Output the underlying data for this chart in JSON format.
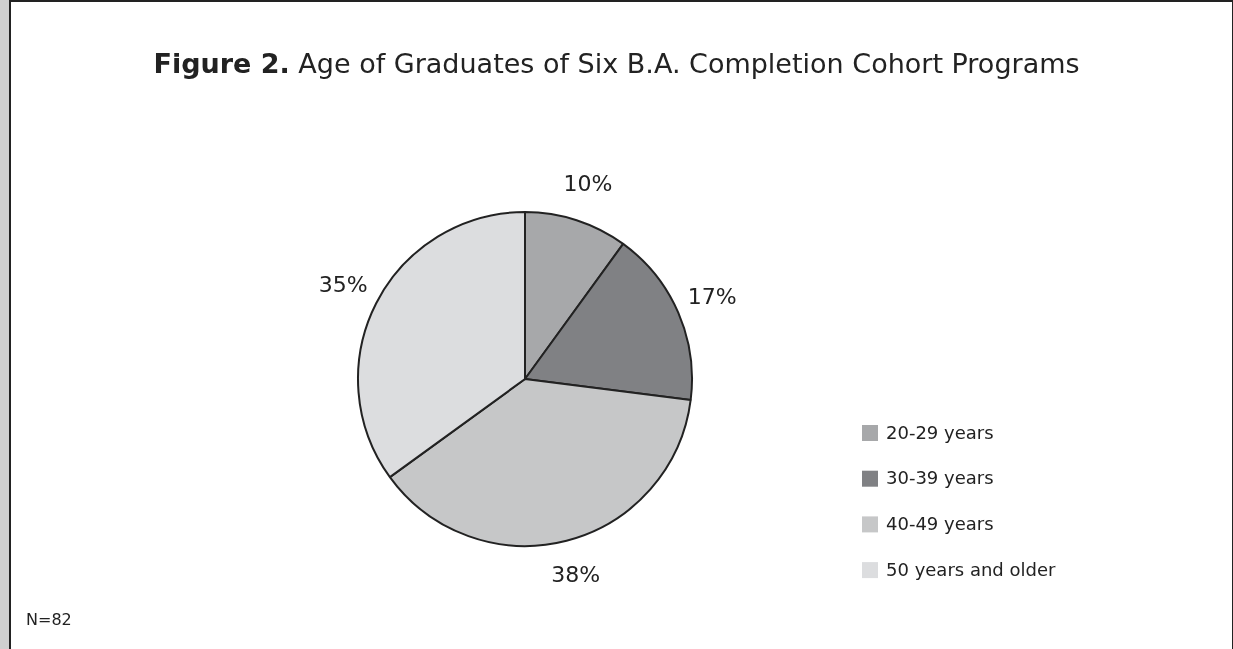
{
  "chart_data": {
    "type": "pie",
    "title": "Figure 2. Age of Graduates of Six B.A. Completion Cohort Programs",
    "categories": [
      "20-29 years",
      "30-39 years",
      "40-49 years",
      "50 years and older"
    ],
    "values": [
      10,
      17,
      38,
      35
    ],
    "colors": [
      "#a7a8aa",
      "#808184",
      "#c6c7c8",
      "#dcdddf"
    ],
    "value_labels": [
      "10%",
      "17%",
      "38%",
      "35%"
    ],
    "legend": "right",
    "annotations": [
      "N=82"
    ]
  }
}
